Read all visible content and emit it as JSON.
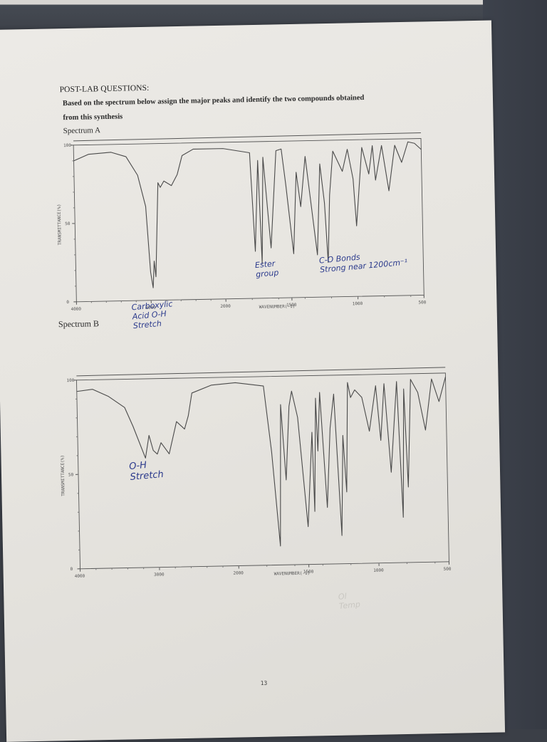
{
  "document": {
    "heading": "POST-LAB QUESTIONS:",
    "instruction_line1": "Based on the spectrum below assign the major peaks and identify the two compounds obtained",
    "instruction_line2": "from this synthesis",
    "spectrum_a_label": "Spectrum A",
    "spectrum_b_label": "Spectrum B",
    "page_number": "13"
  },
  "annotations": {
    "a_carboxylic_1": "Carboxylic",
    "a_carboxylic_2": "Acid O-H",
    "a_carboxylic_3": "Stretch",
    "a_ester_1": "Ester",
    "a_ester_2": "group",
    "a_co_1": "C-O Bonds",
    "a_co_2": "Strong near 1200cm⁻¹",
    "b_oh_1": "O-H",
    "b_oh_2": "Stretch",
    "b_faint_1": "Ol",
    "b_faint_2": "Temp"
  },
  "chart_data": [
    {
      "type": "line",
      "title": "Spectrum A",
      "xlabel": "WAVENUMBER(-1)",
      "ylabel": "TRANSMITTANCE(%)",
      "xlim": [
        4000,
        500
      ],
      "ylim": [
        0,
        100
      ],
      "xticks": [
        "4000",
        "3000",
        "2000",
        "1500",
        "1000",
        "500"
      ],
      "yticks": [
        "0",
        "50",
        "100"
      ],
      "grid": false,
      "x": [
        4000,
        3800,
        3500,
        3300,
        3150,
        3050,
        3000,
        2970,
        2950,
        2930,
        2880,
        2850,
        2800,
        2700,
        2620,
        2550,
        2400,
        2000,
        1800,
        1770,
        1740,
        1720,
        1700,
        1650,
        1600,
        1560,
        1530,
        1480,
        1450,
        1420,
        1380,
        1300,
        1270,
        1240,
        1220,
        1200,
        1170,
        1100,
        1060,
        1020,
        1000,
        950,
        900,
        870,
        850,
        800,
        750,
        700,
        650,
        600,
        550,
        500
      ],
      "values": [
        90,
        94,
        95,
        92,
        80,
        60,
        18,
        8,
        25,
        15,
        75,
        72,
        76,
        73,
        80,
        92,
        96,
        96,
        93,
        30,
        88,
        22,
        90,
        32,
        94,
        95,
        72,
        28,
        80,
        58,
        90,
        27,
        85,
        60,
        22,
        65,
        93,
        80,
        94,
        75,
        45,
        95,
        78,
        96,
        74,
        96,
        67,
        96,
        85,
        98,
        97,
        93
      ]
    },
    {
      "type": "line",
      "title": "Spectrum B",
      "xlabel": "WAVENUMBER(-1)",
      "ylabel": "TRANSMITTANCE(%)",
      "xlim": [
        4000,
        500
      ],
      "ylim": [
        0,
        100
      ],
      "xticks": [
        "4000",
        "3000",
        "2000",
        "1500",
        "1000",
        "500"
      ],
      "yticks": [
        "0",
        "50",
        "100"
      ],
      "grid": false,
      "x": [
        4000,
        3800,
        3600,
        3400,
        3300,
        3150,
        3100,
        3050,
        3000,
        2950,
        2850,
        2750,
        2650,
        2600,
        2550,
        2300,
        2000,
        1800,
        1750,
        1700,
        1680,
        1650,
        1620,
        1600,
        1560,
        1500,
        1460,
        1450,
        1430,
        1420,
        1400,
        1360,
        1330,
        1300,
        1260,
        1240,
        1220,
        1200,
        1180,
        1150,
        1100,
        1050,
        1000,
        970,
        940,
        900,
        850,
        820,
        800,
        780,
        750,
        700,
        650,
        600,
        550,
        500
      ],
      "values": [
        94,
        95,
        91,
        85,
        75,
        58,
        70,
        62,
        60,
        66,
        60,
        77,
        73,
        80,
        92,
        96,
        97,
        95,
        60,
        10,
        85,
        45,
        84,
        92,
        78,
        20,
        70,
        28,
        88,
        60,
        91,
        30,
        72,
        90,
        15,
        68,
        38,
        96,
        88,
        92,
        88,
        70,
        94,
        65,
        95,
        48,
        96,
        24,
        92,
        40,
        97,
        90,
        70,
        97,
        85,
        98
      ]
    }
  ]
}
